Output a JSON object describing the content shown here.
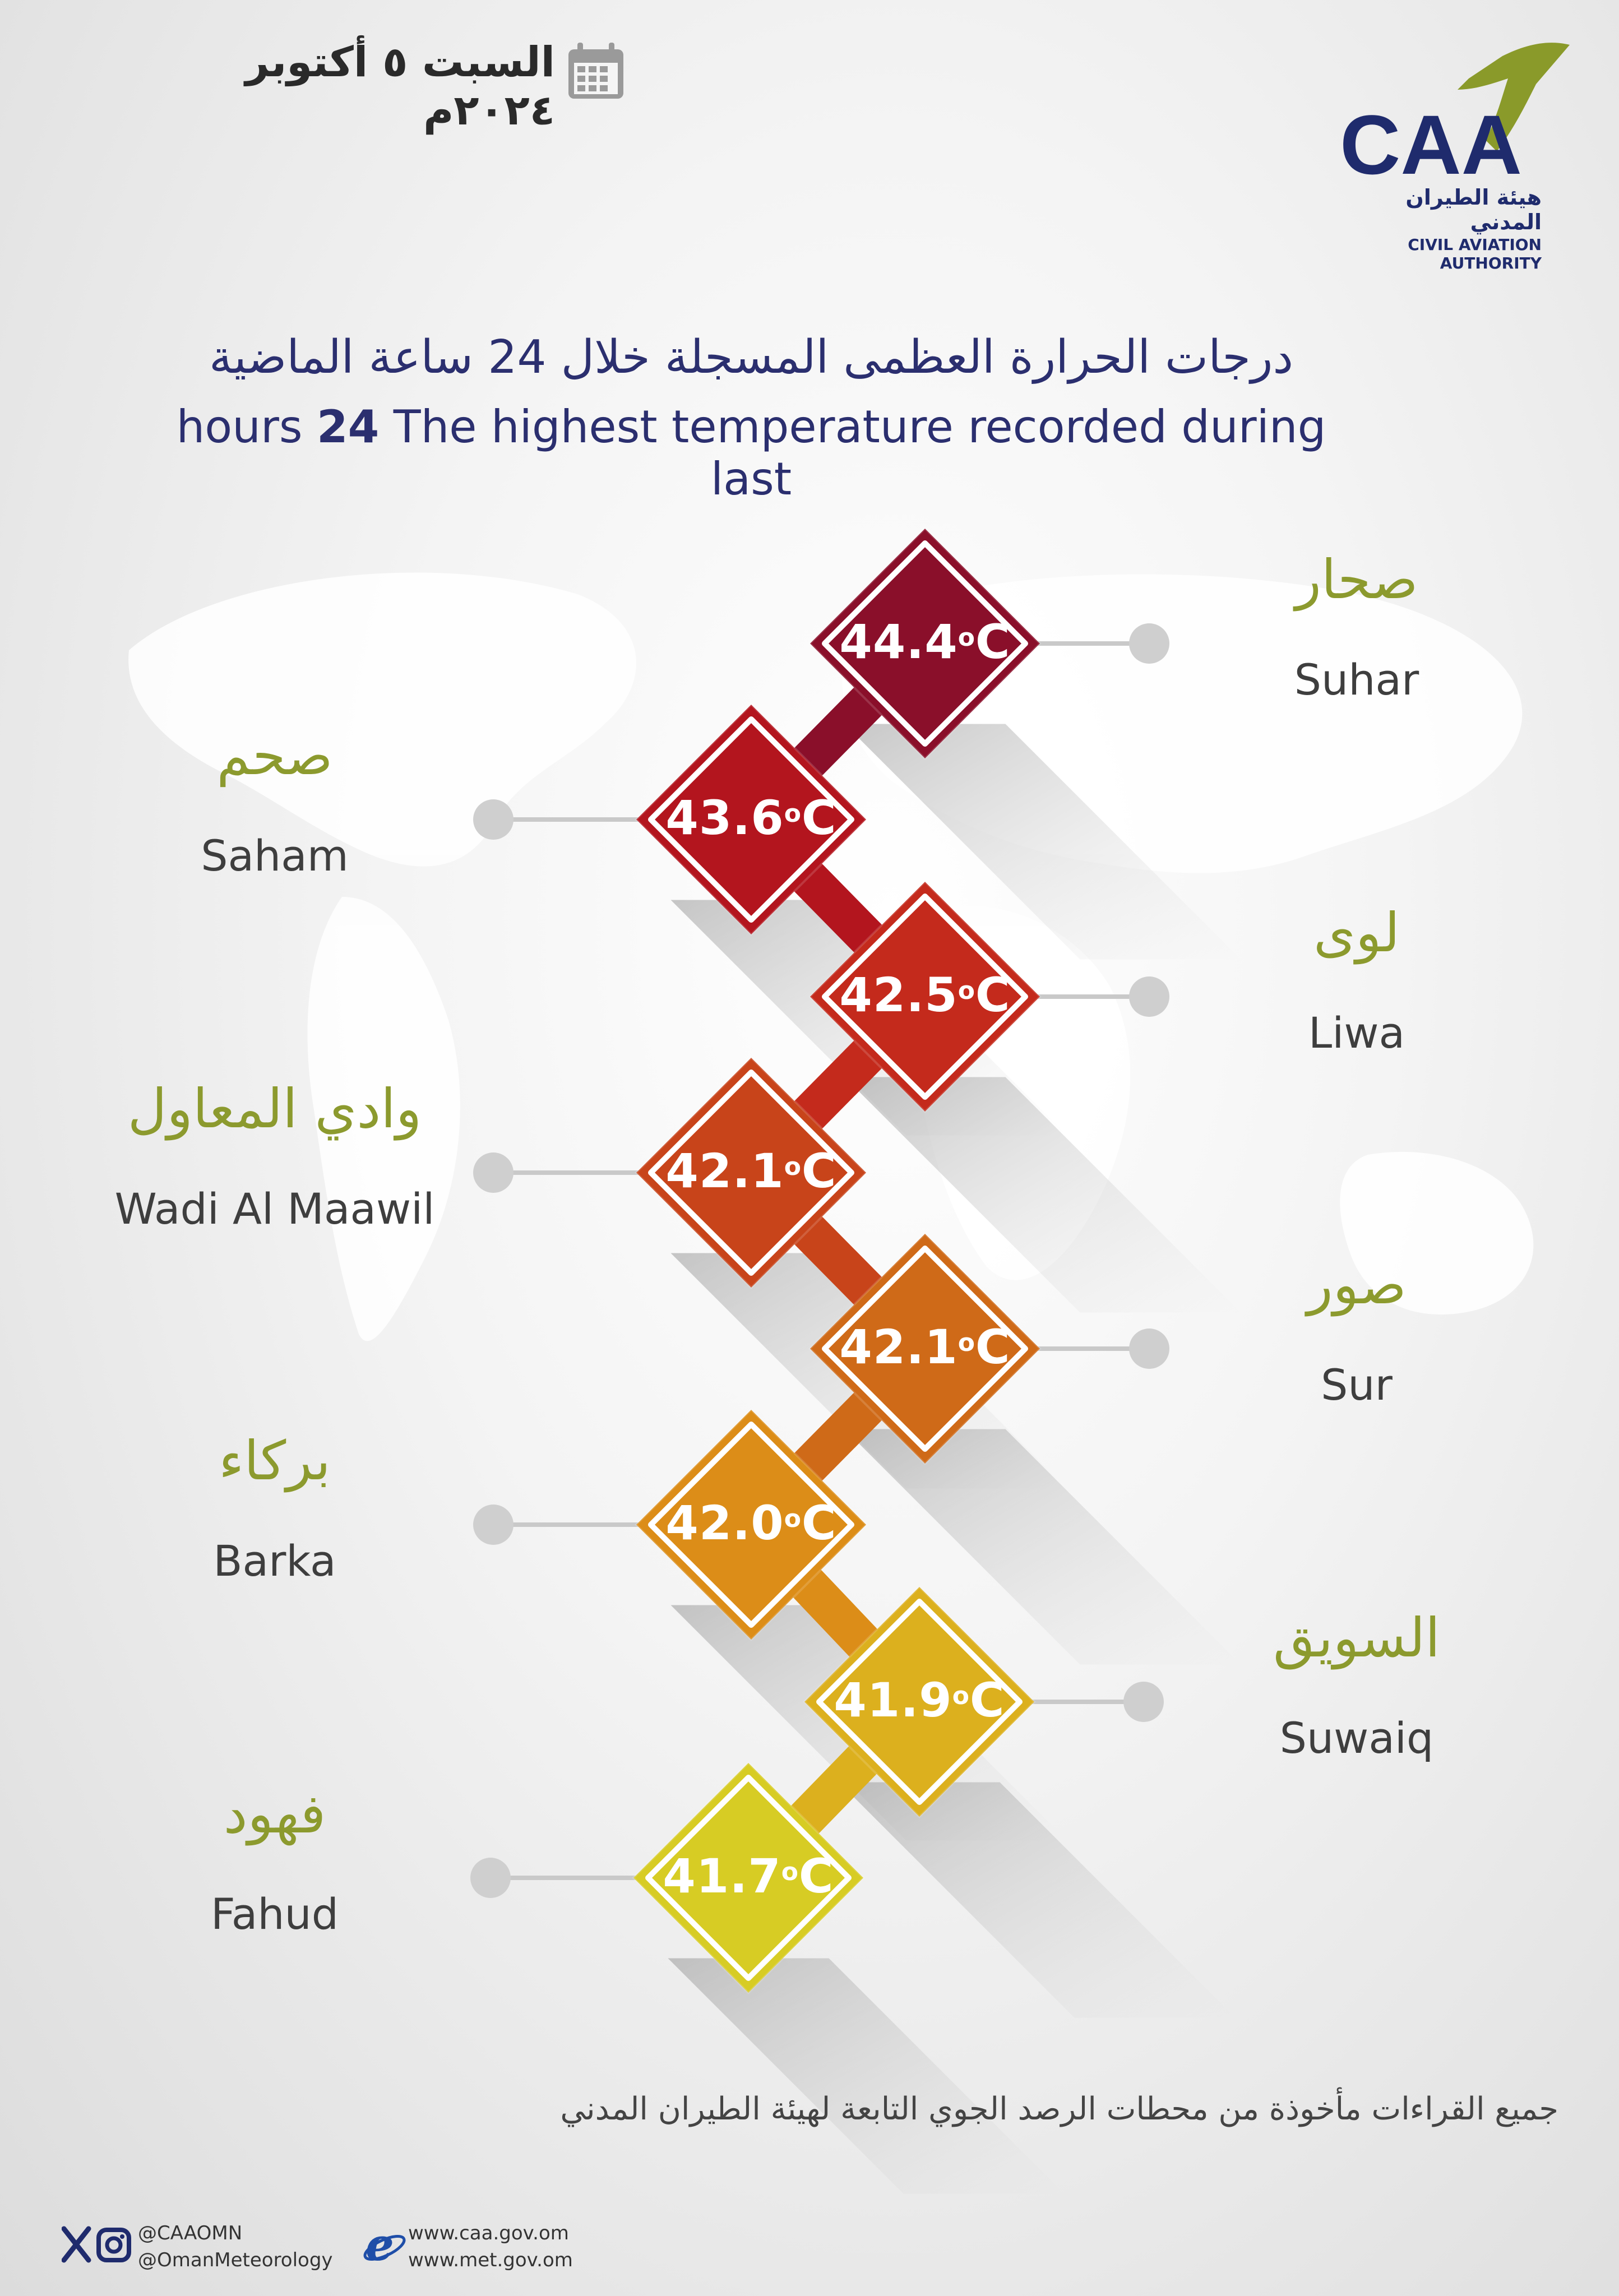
{
  "header": {
    "date": "السبت ٥ أكتوبر ٢٠٢٤م",
    "calendar_icon": "calendar-icon"
  },
  "logo": {
    "abbr": "CAA",
    "name_ar": "هيئة الطيران المدني",
    "name_en": "CIVIL AVIATION AUTHORITY"
  },
  "title": {
    "ar": "درجات الحرارة العظمى المسجلة خلال 24 ساعة الماضية",
    "en_prefix": "hours",
    "en_number": "24",
    "en_rest": "The highest temperature recorded during last"
  },
  "stations": [
    {
      "ar": "صحار",
      "en": "Suhar",
      "value": "44.4",
      "unit": "C",
      "color": "#8a0f2a"
    },
    {
      "ar": "صحم",
      "en": "Saham",
      "value": "43.6",
      "unit": "C",
      "color": "#b3151e"
    },
    {
      "ar": "لوى",
      "en": "Liwa",
      "value": "42.5",
      "unit": "C",
      "color": "#c42a1c"
    },
    {
      "ar": "وادي المعاول",
      "en": "Wadi Al Maawil",
      "value": "42.1",
      "unit": "C",
      "color": "#c8441a"
    },
    {
      "ar": "صور",
      "en": "Sur",
      "value": "42.1",
      "unit": "C",
      "color": "#cf6a18"
    },
    {
      "ar": "بركاء",
      "en": "Barka",
      "value": "42.0",
      "unit": "C",
      "color": "#dc8d18"
    },
    {
      "ar": "السويق",
      "en": "Suwaiq",
      "value": "41.9",
      "unit": "C",
      "color": "#dcb01e"
    },
    {
      "ar": "فهود",
      "en": "Fahud",
      "value": "41.7",
      "unit": "C",
      "color": "#d7cc24"
    }
  ],
  "footer": {
    "note_ar": "جميع القراءات مأخوذة من محطات الرصد الجوي التابعة لهيئة الطيران المدني",
    "handle1": "@CAAOMN",
    "handle2": "@OmanMeteorology",
    "web1": "www.caa.gov.om",
    "web2": "www.met.gov.om"
  }
}
